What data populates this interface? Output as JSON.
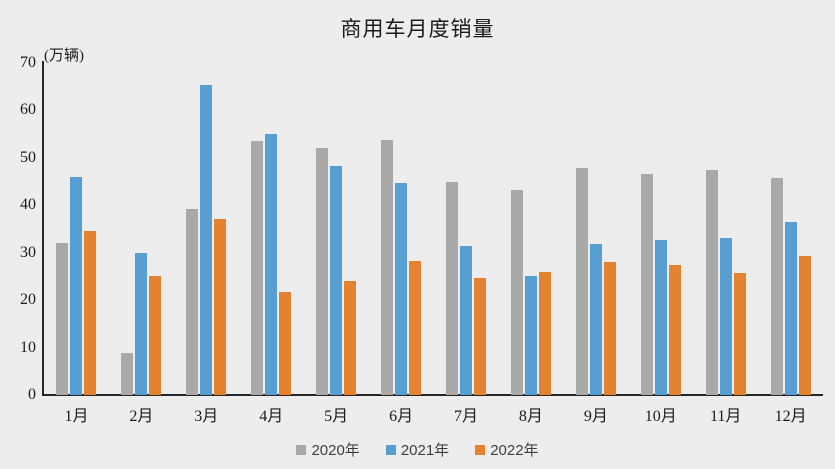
{
  "chart_data": {
    "type": "bar",
    "title": "商用车月度销量",
    "y_unit_label": "(万辆)",
    "categories": [
      "1月",
      "2月",
      "3月",
      "4月",
      "5月",
      "6月",
      "7月",
      "8月",
      "9月",
      "10月",
      "11月",
      "12月"
    ],
    "series": [
      {
        "name": "2020年",
        "color": "#A9A9A9",
        "values": [
          32.0,
          8.8,
          39.2,
          53.5,
          52.1,
          53.7,
          45.0,
          43.3,
          47.8,
          46.6,
          47.4,
          45.8
        ]
      },
      {
        "name": "2021年",
        "color": "#579ED3",
        "values": [
          46.0,
          30.0,
          65.3,
          55.1,
          48.3,
          44.7,
          31.4,
          25.0,
          31.9,
          32.7,
          33.1,
          36.4
        ]
      },
      {
        "name": "2022年",
        "color": "#E3822F",
        "values": [
          34.5,
          25.1,
          37.2,
          21.8,
          24.1,
          28.3,
          24.7,
          26.0,
          28.1,
          27.4,
          25.7,
          29.3
        ]
      }
    ],
    "ylim": [
      0,
      70
    ],
    "yticks": [
      0,
      10,
      20,
      30,
      40,
      50,
      60,
      70
    ],
    "grid": false,
    "legend_position": "bottom",
    "background_color": "#EDEDED",
    "axis_color": "#262626"
  }
}
